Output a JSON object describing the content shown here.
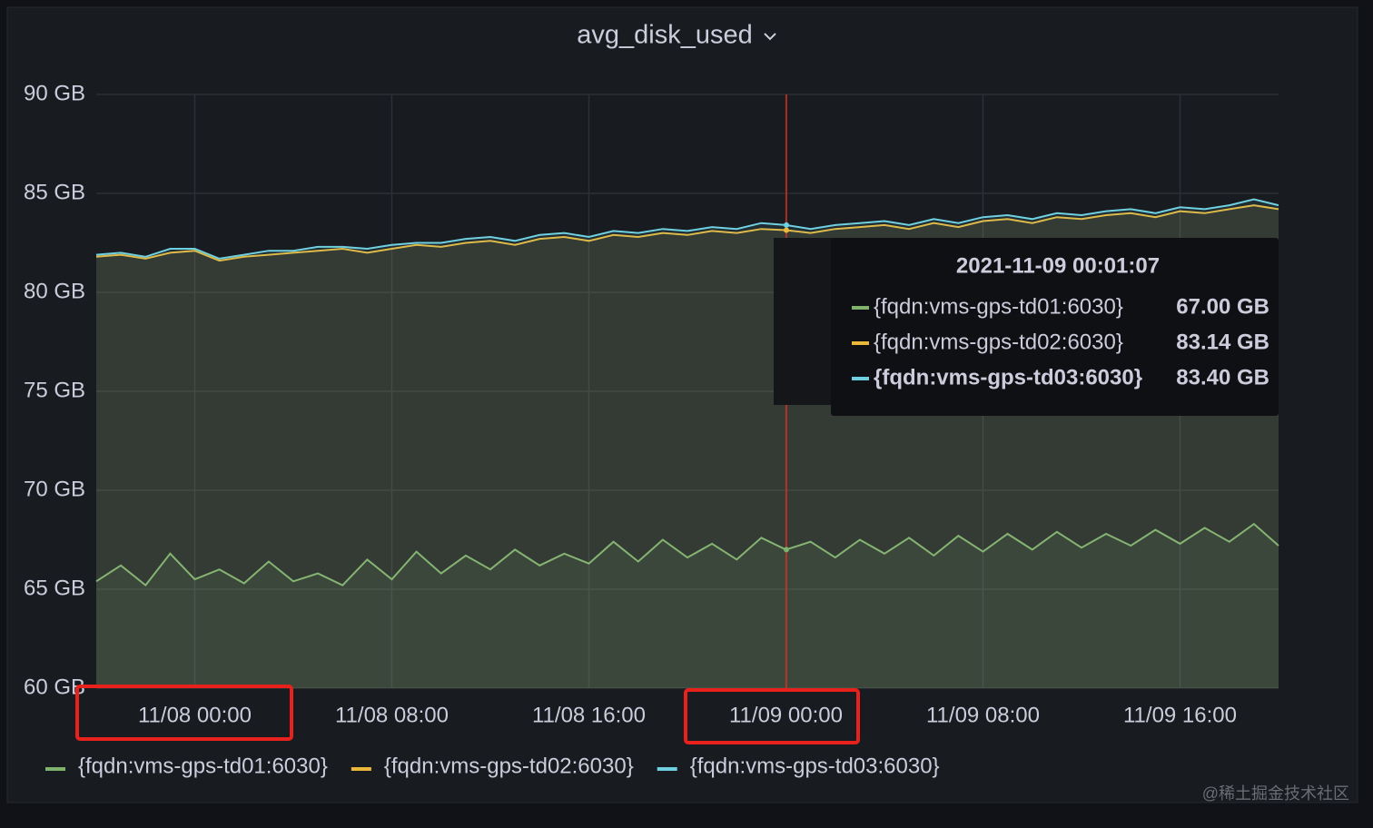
{
  "chart_data": {
    "type": "line",
    "title": "avg_disk_used",
    "x": [
      "2021-11-07 20:00",
      "2021-11-07 21:00",
      "2021-11-07 22:00",
      "2021-11-07 23:00",
      "2021-11-08 00:00",
      "2021-11-08 01:00",
      "2021-11-08 02:00",
      "2021-11-08 03:00",
      "2021-11-08 04:00",
      "2021-11-08 05:00",
      "2021-11-08 06:00",
      "2021-11-08 07:00",
      "2021-11-08 08:00",
      "2021-11-08 09:00",
      "2021-11-08 10:00",
      "2021-11-08 11:00",
      "2021-11-08 12:00",
      "2021-11-08 13:00",
      "2021-11-08 14:00",
      "2021-11-08 15:00",
      "2021-11-08 16:00",
      "2021-11-08 17:00",
      "2021-11-08 18:00",
      "2021-11-08 19:00",
      "2021-11-08 20:00",
      "2021-11-08 21:00",
      "2021-11-08 22:00",
      "2021-11-08 23:00",
      "2021-11-09 00:00",
      "2021-11-09 01:00",
      "2021-11-09 02:00",
      "2021-11-09 03:00",
      "2021-11-09 04:00",
      "2021-11-09 05:00",
      "2021-11-09 06:00",
      "2021-11-09 07:00",
      "2021-11-09 08:00",
      "2021-11-09 09:00",
      "2021-11-09 10:00",
      "2021-11-09 11:00",
      "2021-11-09 12:00",
      "2021-11-09 13:00",
      "2021-11-09 14:00",
      "2021-11-09 15:00",
      "2021-11-09 16:00",
      "2021-11-09 17:00",
      "2021-11-09 18:00",
      "2021-11-09 19:00",
      "2021-11-09 20:00"
    ],
    "series": [
      {
        "name": "{fqdn:vms-gps-td01:6030}",
        "color": "#7eb26d",
        "values": [
          65.4,
          66.2,
          65.2,
          66.8,
          65.5,
          66.0,
          65.3,
          66.4,
          65.4,
          65.8,
          65.2,
          66.5,
          65.5,
          66.9,
          65.8,
          66.7,
          66.0,
          67.0,
          66.2,
          66.8,
          66.3,
          67.4,
          66.4,
          67.5,
          66.6,
          67.3,
          66.5,
          67.6,
          67.0,
          67.4,
          66.6,
          67.5,
          66.8,
          67.6,
          66.7,
          67.7,
          66.9,
          67.8,
          67.0,
          67.9,
          67.1,
          67.8,
          67.2,
          68.0,
          67.3,
          68.1,
          67.4,
          68.3,
          67.2
        ]
      },
      {
        "name": "{fqdn:vms-gps-td02:6030}",
        "color": "#eab839",
        "values": [
          81.8,
          81.9,
          81.7,
          82.0,
          82.1,
          81.6,
          81.8,
          81.9,
          82.0,
          82.1,
          82.2,
          82.0,
          82.2,
          82.4,
          82.3,
          82.5,
          82.6,
          82.4,
          82.7,
          82.8,
          82.6,
          82.9,
          82.8,
          83.0,
          82.9,
          83.1,
          83.0,
          83.2,
          83.14,
          83.0,
          83.2,
          83.3,
          83.4,
          83.2,
          83.5,
          83.3,
          83.6,
          83.7,
          83.5,
          83.8,
          83.7,
          83.9,
          84.0,
          83.8,
          84.1,
          84.0,
          84.2,
          84.4,
          84.2
        ]
      },
      {
        "name": "{fqdn:vms-gps-td03:6030}",
        "color": "#6ed0e0",
        "values": [
          81.9,
          82.0,
          81.8,
          82.2,
          82.2,
          81.7,
          81.9,
          82.1,
          82.1,
          82.3,
          82.3,
          82.2,
          82.4,
          82.5,
          82.5,
          82.7,
          82.8,
          82.6,
          82.9,
          83.0,
          82.8,
          83.1,
          83.0,
          83.2,
          83.1,
          83.3,
          83.2,
          83.5,
          83.4,
          83.2,
          83.4,
          83.5,
          83.6,
          83.4,
          83.7,
          83.5,
          83.8,
          83.9,
          83.7,
          84.0,
          83.9,
          84.1,
          84.2,
          84.0,
          84.3,
          84.2,
          84.4,
          84.7,
          84.4
        ]
      }
    ],
    "xlim": [
      "2021-11-07 20:00",
      "2021-11-09 20:00"
    ],
    "xticks": [
      {
        "value": "2021-11-08 00:00",
        "label": "11/08 00:00"
      },
      {
        "value": "2021-11-08 08:00",
        "label": "11/08 08:00"
      },
      {
        "value": "2021-11-08 16:00",
        "label": "11/08 16:00"
      },
      {
        "value": "2021-11-09 00:00",
        "label": "11/09 00:00"
      },
      {
        "value": "2021-11-09 08:00",
        "label": "11/09 08:00"
      },
      {
        "value": "2021-11-09 16:00",
        "label": "11/09 16:00"
      }
    ],
    "ylim": [
      60,
      90
    ],
    "yticks": [
      {
        "value": 60,
        "label": "60 GB"
      },
      {
        "value": 65,
        "label": "65 GB"
      },
      {
        "value": 70,
        "label": "70 GB"
      },
      {
        "value": 75,
        "label": "75 GB"
      },
      {
        "value": 80,
        "label": "80 GB"
      },
      {
        "value": 85,
        "label": "85 GB"
      },
      {
        "value": 90,
        "label": "90 GB"
      }
    ],
    "grid": true,
    "legend": "bottom",
    "tooltip": {
      "time": "2021-11-09 00:01:07",
      "values": [
        67.0,
        83.14,
        83.4
      ],
      "value_labels": [
        "67.00 GB",
        "83.14 GB",
        "83.40 GB"
      ]
    },
    "watermark": "@稀土掘金技术社区"
  }
}
